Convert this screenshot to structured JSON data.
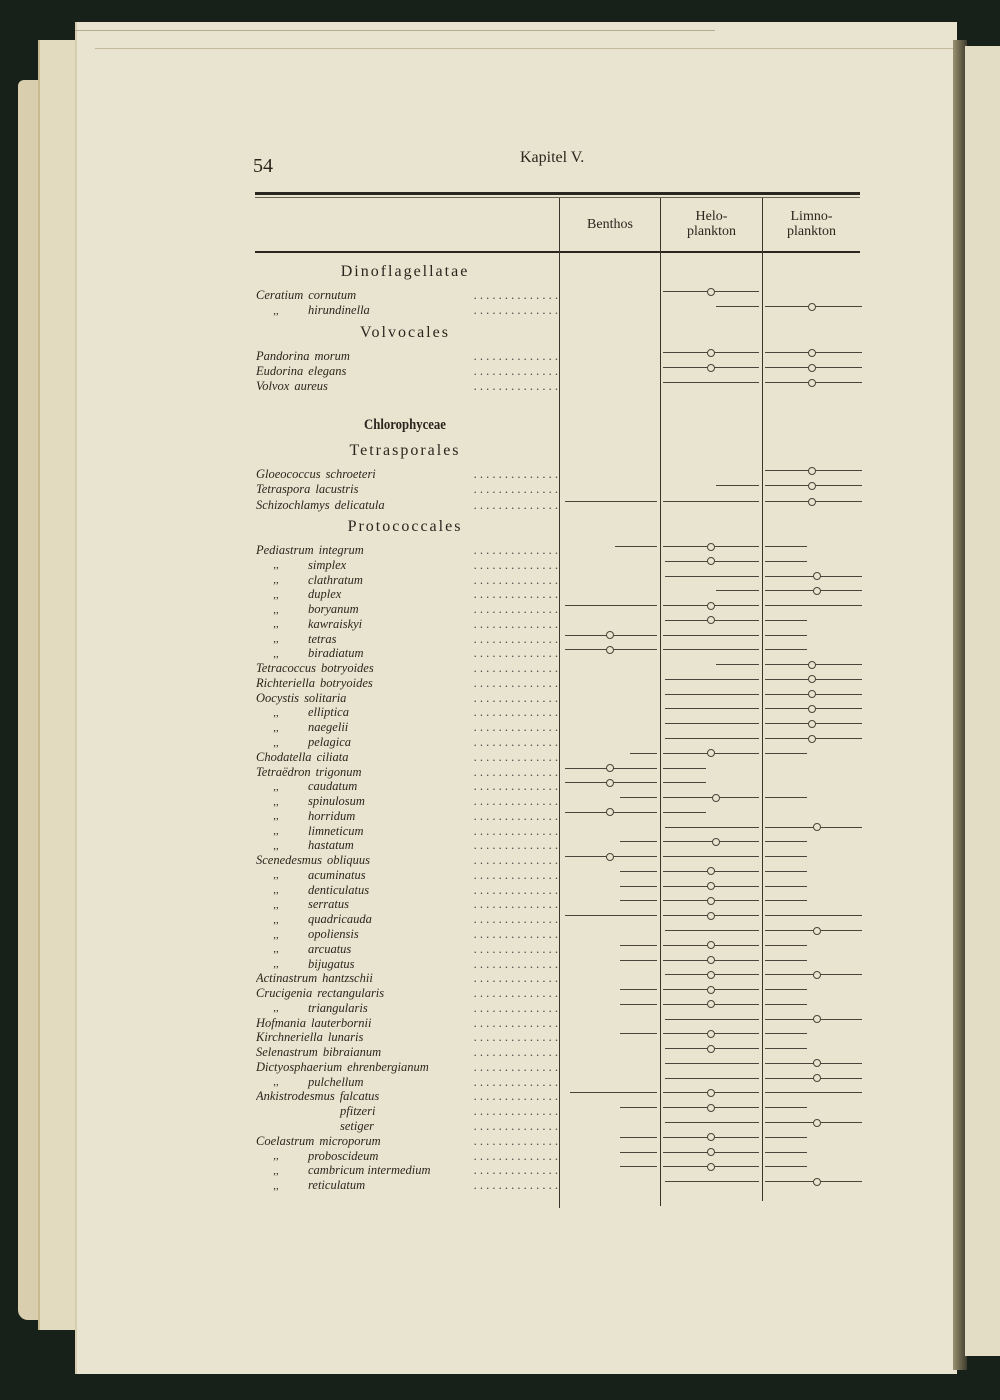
{
  "page": {
    "number": "54",
    "running_head": "Kapitel V."
  },
  "columns": [
    {
      "label_lines": [
        "Benthos"
      ]
    },
    {
      "label_lines": [
        "Helo-",
        "plankton"
      ]
    },
    {
      "label_lines": [
        "Limno-",
        "plankton"
      ]
    }
  ],
  "habitat_scale_note": "",
  "body": [
    {
      "type": "heading",
      "text": "Dinoflagellatae"
    },
    {
      "type": "row",
      "genus": "Ceratium",
      "species": "cornutum",
      "range": [
        1.0,
        2.0
      ],
      "optimum": [
        1.5
      ]
    },
    {
      "type": "row",
      "genus": ",,",
      "species": "hirundinella",
      "range": [
        1.55,
        3.0
      ],
      "optimum": [
        2.5
      ]
    },
    {
      "type": "heading",
      "text": "Volvocales"
    },
    {
      "type": "row",
      "genus": "Pandorina",
      "species": "morum",
      "range": [
        1.0,
        3.0
      ],
      "optimum": [
        1.5,
        2.5
      ]
    },
    {
      "type": "row",
      "genus": "Eudorina",
      "species": "elegans",
      "range": [
        1.0,
        3.0
      ],
      "optimum": [
        1.5,
        2.5
      ]
    },
    {
      "type": "row",
      "genus": "Volvox",
      "species": "aureus",
      "range": [
        1.0,
        3.0
      ],
      "optimum": [
        2.5
      ]
    },
    {
      "type": "heading",
      "text": "Chlorophyceae",
      "bold": true
    },
    {
      "type": "heading",
      "text": "Tetrasporales"
    },
    {
      "type": "row",
      "genus": "Gloeococcus",
      "species": "schroeteri",
      "range": [
        2.0,
        3.0
      ],
      "optimum": [
        2.5
      ]
    },
    {
      "type": "row",
      "genus": "Tetraspora",
      "species": "lacustris",
      "range": [
        1.55,
        3.0
      ],
      "optimum": [
        2.5
      ]
    },
    {
      "type": "row",
      "genus": "Schizochlamys",
      "species": "delicatula",
      "range": [
        0.05,
        3.0
      ],
      "optimum": [
        2.5
      ]
    },
    {
      "type": "heading",
      "text": "Protococcales"
    },
    {
      "type": "row",
      "genus": "Pediastrum",
      "species": "integrum",
      "range": [
        0.55,
        2.45
      ],
      "optimum": [
        1.5
      ]
    },
    {
      "type": "row",
      "genus": ",,",
      "species": "simplex",
      "range": [
        1.05,
        2.45
      ],
      "optimum": [
        1.5
      ]
    },
    {
      "type": "row",
      "genus": ",,",
      "species": "clathratum",
      "range": [
        1.05,
        3.0
      ],
      "optimum": [
        2.55
      ]
    },
    {
      "type": "row",
      "genus": ",,",
      "species": "duplex",
      "range": [
        1.55,
        3.0
      ],
      "optimum": [
        2.55
      ]
    },
    {
      "type": "row",
      "genus": ",,",
      "species": "boryanum",
      "range": [
        0.05,
        3.0
      ],
      "optimum": [
        1.5
      ]
    },
    {
      "type": "row",
      "genus": ",,",
      "species": "kawraiskyi",
      "range": [
        1.05,
        2.45
      ],
      "optimum": [
        1.5
      ]
    },
    {
      "type": "row",
      "genus": ",,",
      "species": "tetras",
      "range": [
        0.05,
        2.45
      ],
      "optimum": [
        0.5
      ]
    },
    {
      "type": "row",
      "genus": ",,",
      "species": "biradiatum",
      "range": [
        0.05,
        2.45
      ],
      "optimum": [
        0.5
      ]
    },
    {
      "type": "row",
      "genus": "Tetracoccus",
      "species": "botryoides",
      "range": [
        1.55,
        3.0
      ],
      "optimum": [
        2.5
      ]
    },
    {
      "type": "row",
      "genus": "Richteriella",
      "species": "botryoides",
      "range": [
        1.05,
        3.0
      ],
      "optimum": [
        2.5
      ]
    },
    {
      "type": "row",
      "genus": "Oocystis",
      "species": "solitaria",
      "range": [
        1.05,
        3.0
      ],
      "optimum": [
        2.5
      ]
    },
    {
      "type": "row",
      "genus": ",,",
      "species": "elliptica",
      "range": [
        1.05,
        3.0
      ],
      "optimum": [
        2.5
      ]
    },
    {
      "type": "row",
      "genus": ",,",
      "species": "naegelii",
      "range": [
        1.05,
        3.0
      ],
      "optimum": [
        2.5
      ]
    },
    {
      "type": "row",
      "genus": ",,",
      "species": "pelagica",
      "range": [
        1.05,
        3.0
      ],
      "optimum": [
        2.5
      ]
    },
    {
      "type": "row",
      "genus": "Chodatella",
      "species": "ciliata",
      "range": [
        0.7,
        2.45
      ],
      "optimum": [
        1.5
      ]
    },
    {
      "type": "row",
      "genus": "Tetraëdron",
      "species": "trigonum",
      "range": [
        0.05,
        1.45
      ],
      "optimum": [
        0.5
      ]
    },
    {
      "type": "row",
      "genus": ",,",
      "species": "caudatum",
      "range": [
        0.05,
        1.45
      ],
      "optimum": [
        0.5
      ]
    },
    {
      "type": "row",
      "genus": ",,",
      "species": "spinulosum",
      "range": [
        0.6,
        2.45
      ],
      "optimum": [
        1.55
      ]
    },
    {
      "type": "row",
      "genus": ",,",
      "species": "horridum",
      "range": [
        0.05,
        1.45
      ],
      "optimum": [
        0.5
      ]
    },
    {
      "type": "row",
      "genus": ",,",
      "species": "limneticum",
      "range": [
        1.05,
        3.0
      ],
      "optimum": [
        2.55
      ]
    },
    {
      "type": "row",
      "genus": ",,",
      "species": "hastatum",
      "range": [
        0.6,
        2.45
      ],
      "optimum": [
        1.55
      ]
    },
    {
      "type": "row",
      "genus": "Scenedesmus",
      "species": "obliquus",
      "range": [
        0.05,
        2.45
      ],
      "optimum": [
        0.5
      ]
    },
    {
      "type": "row",
      "genus": ",,",
      "species": "acuminatus",
      "range": [
        0.6,
        2.45
      ],
      "optimum": [
        1.5
      ]
    },
    {
      "type": "row",
      "genus": ",,",
      "species": "denticulatus",
      "range": [
        0.6,
        2.45
      ],
      "optimum": [
        1.5
      ]
    },
    {
      "type": "row",
      "genus": ",,",
      "species": "serratus",
      "range": [
        0.6,
        2.45
      ],
      "optimum": [
        1.5
      ]
    },
    {
      "type": "row",
      "genus": ",,",
      "species": "quadricauda",
      "range": [
        0.05,
        3.0
      ],
      "optimum": [
        1.5
      ]
    },
    {
      "type": "row",
      "genus": ",,",
      "species": "opoliensis",
      "range": [
        1.05,
        3.0
      ],
      "optimum": [
        2.55
      ]
    },
    {
      "type": "row",
      "genus": ",,",
      "species": "arcuatus",
      "range": [
        0.6,
        2.45
      ],
      "optimum": [
        1.5
      ]
    },
    {
      "type": "row",
      "genus": ",,",
      "species": "bijugatus",
      "range": [
        0.6,
        2.45
      ],
      "optimum": [
        1.5
      ]
    },
    {
      "type": "row",
      "genus": "Actinastrum",
      "species": "hantzschii",
      "range": [
        1.05,
        3.0
      ],
      "optimum": [
        1.5,
        2.55
      ]
    },
    {
      "type": "row",
      "genus": "Crucigenia",
      "species": "rectangularis",
      "range": [
        0.6,
        2.45
      ],
      "optimum": [
        1.5
      ]
    },
    {
      "type": "row",
      "genus": ",,",
      "species": "triangularis",
      "range": [
        0.6,
        2.45
      ],
      "optimum": [
        1.5
      ]
    },
    {
      "type": "row",
      "genus": "Hofmania",
      "species": "lauterbornii",
      "range": [
        1.05,
        3.0
      ],
      "optimum": [
        2.55
      ]
    },
    {
      "type": "row",
      "genus": "Kirchneriella",
      "species": "lunaris",
      "range": [
        0.6,
        2.45
      ],
      "optimum": [
        1.5
      ]
    },
    {
      "type": "row",
      "genus": "Selenastrum",
      "species": "bibraianum",
      "range": [
        1.05,
        2.45
      ],
      "optimum": [
        1.5
      ]
    },
    {
      "type": "row",
      "genus": "Dictyosphaerium",
      "species": "ehrenbergianum",
      "range": [
        1.05,
        3.0
      ],
      "optimum": [
        2.55
      ]
    },
    {
      "type": "row",
      "genus": ",,",
      "species": "pulchellum",
      "range": [
        1.05,
        3.0
      ],
      "optimum": [
        2.55
      ]
    },
    {
      "type": "row",
      "genus": "Ankistrodesmus",
      "species": "falcatus",
      "range": [
        0.1,
        3.0
      ],
      "optimum": [
        1.5
      ]
    },
    {
      "type": "row",
      "genus": "",
      "species": "pfitzeri",
      "range": [
        0.6,
        2.45
      ],
      "optimum": [
        1.5
      ]
    },
    {
      "type": "row",
      "genus": "",
      "species": "setiger",
      "range": [
        1.05,
        3.0
      ],
      "optimum": [
        2.55
      ]
    },
    {
      "type": "row",
      "genus": "Coelastrum",
      "species": "microporum",
      "range": [
        0.6,
        2.45
      ],
      "optimum": [
        1.5
      ]
    },
    {
      "type": "row",
      "genus": ",,",
      "species": "proboscideum",
      "range": [
        0.6,
        2.45
      ],
      "optimum": [
        1.5
      ]
    },
    {
      "type": "row",
      "genus": ",,",
      "species": "cambricum intermedium",
      "range": [
        0.6,
        2.45
      ],
      "optimum": [
        1.5
      ]
    },
    {
      "type": "row",
      "genus": ",,",
      "species": "reticulatum",
      "range": [
        1.05,
        3.0
      ],
      "optimum": [
        2.55
      ]
    }
  ]
}
